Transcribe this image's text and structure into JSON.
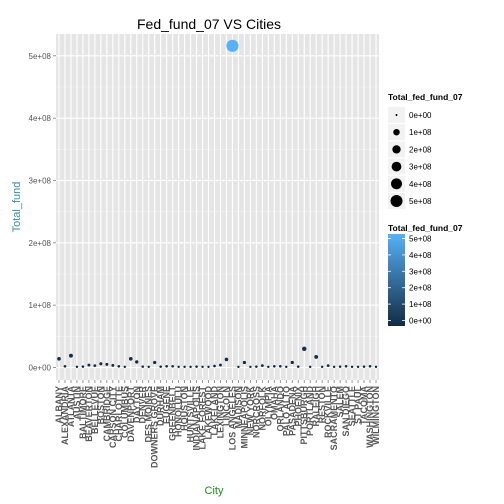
{
  "chart_data": {
    "type": "scatter",
    "title": "Fed_fund_07 VS Cities",
    "xlabel": "City",
    "ylabel": "Total_fund",
    "ylim": [
      -20000000.0,
      535000000.0
    ],
    "yticks": [
      0,
      100000000,
      200000000,
      300000000,
      400000000,
      500000000
    ],
    "yticklabels": [
      "0e+00",
      "1e+08",
      "2e+08",
      "3e+08",
      "4e+08",
      "5e+08"
    ],
    "grid": true,
    "legend_position": "right",
    "categories": [
      "ALBANY",
      "ALEXANDRIA",
      "ATLANTA",
      "AUSTIN",
      "BALTIMORE",
      "BEAVERTON",
      "BELLEVUE",
      "BOSTON",
      "CAMBRIDGE",
      "CARSON CITY",
      "CHARLOTTE",
      "COLUMBUS",
      "DAVENPORT",
      "DAYTON",
      "DENVER",
      "DES MOINES",
      "DOWNERS GROVE",
      "DURHAM",
      "EUGENE",
      "GREENBELT",
      "HONOLULU",
      "HOUSTON",
      "HUNTSVILLE",
      "INDIANAPOLIS",
      "LAKE FOREST",
      "LAKEWOOD",
      "LAKELAND",
      "LEXINGTON",
      "LINCOLN",
      "LOS ANGELES",
      "MADISON",
      "MINNEAPOLIS",
      "NEW YORK",
      "NORCROSS",
      "NORFOLK",
      "OLYMPIA",
      "OMAHA",
      "ORLANDO",
      "PALO ALTO",
      "PASADENA",
      "PHOENIX",
      "PITTSBURGH",
      "PORTLAND",
      "RALEIGH",
      "RESTON",
      "ROCKVILLE",
      "SACRAMENTO",
      "SALEM",
      "SAN DIEGO",
      "SEATTLE",
      "ST PAUL",
      "TACOMA",
      "WASHINGTON",
      "WILMINGTON"
    ],
    "series": [
      {
        "values": [
          14000000,
          2000000,
          19000000,
          1000000,
          1500000,
          4000000,
          3000000,
          6000000,
          5000000,
          3500000,
          2000000,
          1000000,
          14000000,
          9000000,
          1500000,
          1000000,
          8000000,
          1500000,
          2000000,
          2000000,
          1000000,
          1000000,
          1000000,
          1500000,
          1000000,
          1000000,
          2500000,
          4000000,
          13000000,
          516000000,
          1000000,
          8000000,
          1000000,
          1500000,
          3000000,
          1000000,
          2000000,
          2000000,
          1000000,
          8000000,
          1500000,
          30000000,
          1000000,
          17000000,
          1000000,
          3000000,
          1000000,
          1500000,
          2000000,
          1000000,
          1000000,
          1500000,
          2000000,
          1000000
        ],
        "colors": {
          "low": "#132B43",
          "high": "#56B1F7"
        }
      }
    ],
    "size_legend": {
      "title": "Total_fed_fund_07",
      "labels": [
        "0e+00",
        "1e+08",
        "2e+08",
        "3e+08",
        "4e+08",
        "5e+08"
      ],
      "values": [
        0,
        100000000,
        200000000,
        300000000,
        400000000,
        500000000
      ]
    },
    "color_legend": {
      "title": "Total_fed_fund_07",
      "labels": [
        "5e+08",
        "4e+08",
        "3e+08",
        "2e+08",
        "1e+08",
        "0e+00"
      ],
      "values": [
        500000000,
        400000000,
        300000000,
        200000000,
        100000000,
        0
      ],
      "low": "#132B43",
      "high": "#56B1F7"
    },
    "colors": {
      "panel_bg": "#E5E5E5",
      "grid_major": "#FFFFFF",
      "grid_minor": "#F2F2F2",
      "title": "#000000",
      "xlabel": "#1E8A1E",
      "ylabel": "#3A8D9E",
      "tick_text": "#555555"
    }
  }
}
